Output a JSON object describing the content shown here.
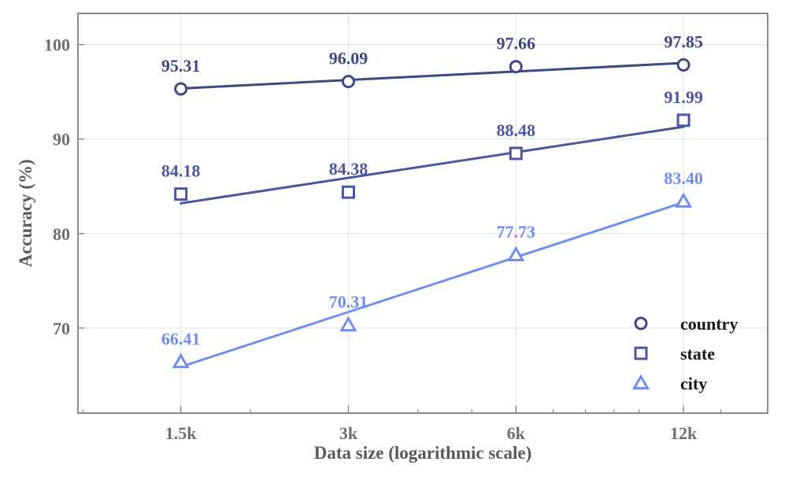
{
  "chart_data": {
    "type": "line",
    "title": "",
    "xlabel": "Data size (logarithmic scale)",
    "ylabel": "Accuracy (%)",
    "x_scale": "log",
    "categories": [
      "1.5k",
      "3k",
      "6k",
      "12k"
    ],
    "x": [
      1500,
      3000,
      6000,
      12000
    ],
    "xlim": [
      980,
      17000
    ],
    "ylim": [
      61,
      103.3
    ],
    "yticks": [
      70,
      80,
      90,
      100
    ],
    "grid": true,
    "legend_position": "bottom-right",
    "series": [
      {
        "name": "country",
        "marker": "circle",
        "color": "#3d4a82",
        "values": [
          95.31,
          96.09,
          97.66,
          97.85
        ],
        "labels": [
          "95.31",
          "96.09",
          "97.66",
          "97.85"
        ],
        "fit_line": [
          95.35,
          96.25,
          97.15,
          98.05
        ]
      },
      {
        "name": "state",
        "marker": "square",
        "color": "#4a56a0",
        "values": [
          84.18,
          84.38,
          88.48,
          91.99
        ],
        "labels": [
          "84.18",
          "84.38",
          "88.48",
          "91.99"
        ],
        "fit_line": [
          83.2,
          85.9,
          88.6,
          91.3
        ]
      },
      {
        "name": "city",
        "marker": "triangle",
        "color": "#6e8ef2",
        "values": [
          66.41,
          70.31,
          77.73,
          83.4
        ],
        "labels": [
          "66.41",
          "70.31",
          "77.73",
          "83.40"
        ],
        "fit_line": [
          65.9,
          71.7,
          77.5,
          83.3
        ]
      }
    ]
  }
}
